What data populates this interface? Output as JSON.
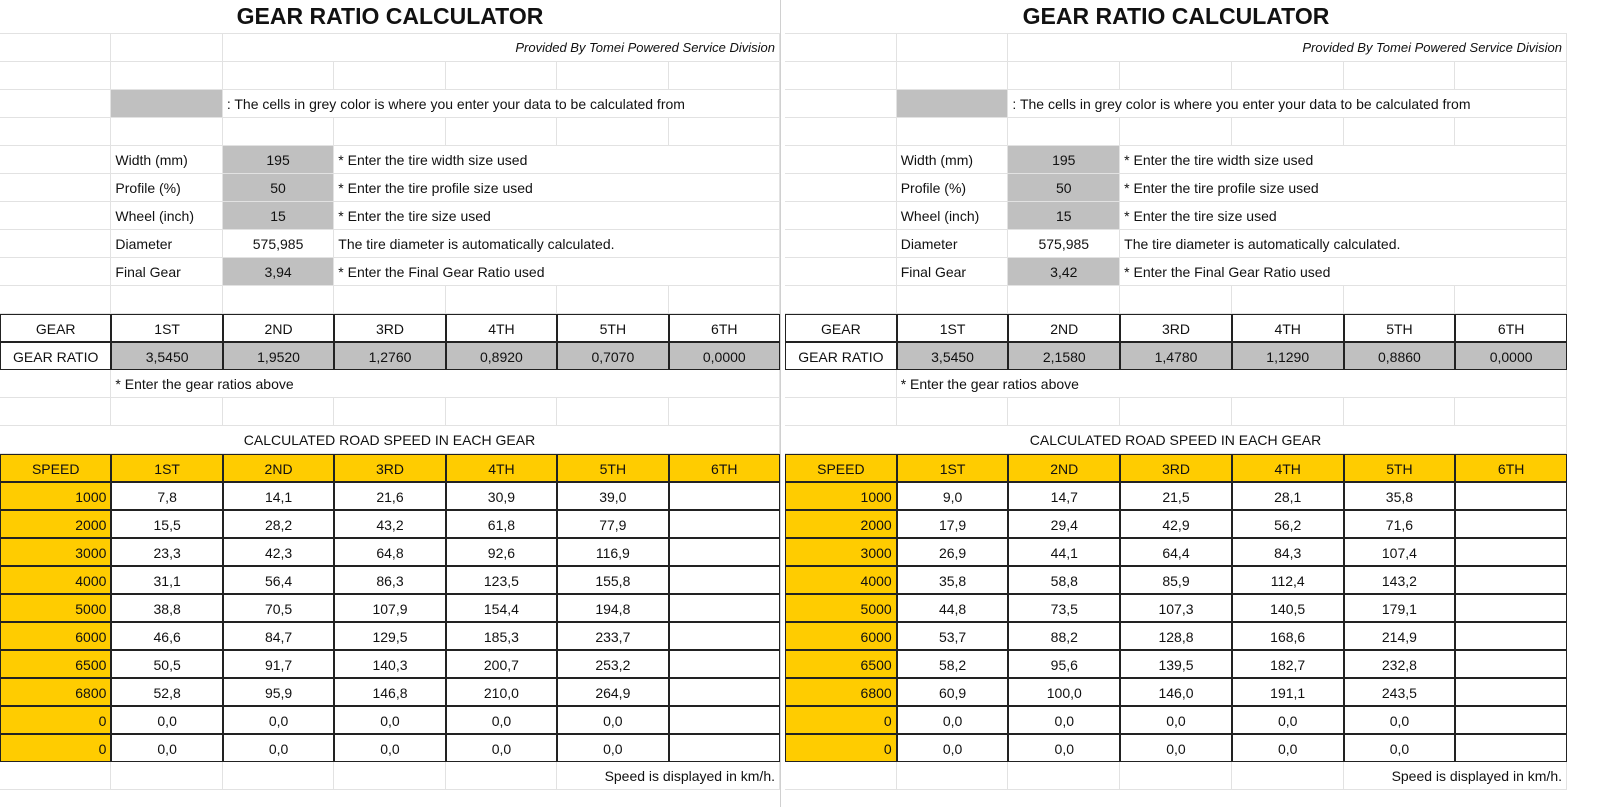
{
  "panels": [
    {
      "title": "GEAR RATIO CALCULATOR",
      "provider": "Provided By Tomei Powered Service Division",
      "legend": ": The cells in grey color is where you enter your data to be calculated from",
      "inputs": [
        {
          "label": "Width (mm)",
          "value": "195",
          "note": "* Enter the tire width size used",
          "editable": true
        },
        {
          "label": "Profile (%)",
          "value": "50",
          "note": "* Enter the tire profile size used",
          "editable": true
        },
        {
          "label": "Wheel (inch)",
          "value": "15",
          "note": "* Enter the tire size used",
          "editable": true
        },
        {
          "label": "Diameter",
          "value": "575,985",
          "note": "The tire diameter is automatically calculated.",
          "editable": false
        },
        {
          "label": "Final Gear",
          "value": "3,94",
          "note": "* Enter the Final Gear Ratio used",
          "editable": true
        }
      ],
      "gear_header": [
        "GEAR",
        "1ST",
        "2ND",
        "3RD",
        "4TH",
        "5TH",
        "6TH"
      ],
      "ratio_label": "GEAR RATIO",
      "ratios": [
        "3,5450",
        "1,9520",
        "1,2760",
        "0,8920",
        "0,7070",
        "0,0000"
      ],
      "ratio_note": "* Enter the gear ratios above",
      "speed_title": "CALCULATED ROAD SPEED IN EACH GEAR",
      "speed_header": [
        "SPEED",
        "1ST",
        "2ND",
        "3RD",
        "4TH",
        "5TH",
        "6TH"
      ],
      "speed_rows": [
        [
          "1000",
          "7,8",
          "14,1",
          "21,6",
          "30,9",
          "39,0",
          ""
        ],
        [
          "2000",
          "15,5",
          "28,2",
          "43,2",
          "61,8",
          "77,9",
          ""
        ],
        [
          "3000",
          "23,3",
          "42,3",
          "64,8",
          "92,6",
          "116,9",
          ""
        ],
        [
          "4000",
          "31,1",
          "56,4",
          "86,3",
          "123,5",
          "155,8",
          ""
        ],
        [
          "5000",
          "38,8",
          "70,5",
          "107,9",
          "154,4",
          "194,8",
          ""
        ],
        [
          "6000",
          "46,6",
          "84,7",
          "129,5",
          "185,3",
          "233,7",
          ""
        ],
        [
          "6500",
          "50,5",
          "91,7",
          "140,3",
          "200,7",
          "253,2",
          ""
        ],
        [
          "6800",
          "52,8",
          "95,9",
          "146,8",
          "210,0",
          "264,9",
          ""
        ],
        [
          "0",
          "0,0",
          "0,0",
          "0,0",
          "0,0",
          "0,0",
          ""
        ],
        [
          "0",
          "0,0",
          "0,0",
          "0,0",
          "0,0",
          "0,0",
          ""
        ]
      ],
      "unit_note": "Speed is displayed in km/h."
    },
    {
      "title": "GEAR RATIO CALCULATOR",
      "provider": "Provided By Tomei Powered Service Division",
      "legend": ": The cells in grey color is where you enter your data to be calculated from",
      "inputs": [
        {
          "label": "Width (mm)",
          "value": "195",
          "note": "* Enter the tire width size used",
          "editable": true
        },
        {
          "label": "Profile (%)",
          "value": "50",
          "note": "* Enter the tire profile size used",
          "editable": true
        },
        {
          "label": "Wheel (inch)",
          "value": "15",
          "note": "* Enter the tire size used",
          "editable": true
        },
        {
          "label": "Diameter",
          "value": "575,985",
          "note": "The tire diameter is automatically calculated.",
          "editable": false
        },
        {
          "label": "Final Gear",
          "value": "3,42",
          "note": "* Enter the Final Gear Ratio used",
          "editable": true
        }
      ],
      "gear_header": [
        "GEAR",
        "1ST",
        "2ND",
        "3RD",
        "4TH",
        "5TH",
        "6TH"
      ],
      "ratio_label": "GEAR RATIO",
      "ratios": [
        "3,5450",
        "2,1580",
        "1,4780",
        "1,1290",
        "0,8860",
        "0,0000"
      ],
      "ratio_note": "* Enter the gear ratios above",
      "speed_title": "CALCULATED ROAD SPEED IN EACH GEAR",
      "speed_header": [
        "SPEED",
        "1ST",
        "2ND",
        "3RD",
        "4TH",
        "5TH",
        "6TH"
      ],
      "speed_rows": [
        [
          "1000",
          "9,0",
          "14,7",
          "21,5",
          "28,1",
          "35,8",
          ""
        ],
        [
          "2000",
          "17,9",
          "29,4",
          "42,9",
          "56,2",
          "71,6",
          ""
        ],
        [
          "3000",
          "26,9",
          "44,1",
          "64,4",
          "84,3",
          "107,4",
          ""
        ],
        [
          "4000",
          "35,8",
          "58,8",
          "85,9",
          "112,4",
          "143,2",
          ""
        ],
        [
          "5000",
          "44,8",
          "73,5",
          "107,3",
          "140,5",
          "179,1",
          ""
        ],
        [
          "6000",
          "53,7",
          "88,2",
          "128,8",
          "168,6",
          "214,9",
          ""
        ],
        [
          "6500",
          "58,2",
          "95,6",
          "139,5",
          "182,7",
          "232,8",
          ""
        ],
        [
          "6800",
          "60,9",
          "100,0",
          "146,0",
          "191,1",
          "243,5",
          ""
        ],
        [
          "0",
          "0,0",
          "0,0",
          "0,0",
          "0,0",
          "0,0",
          ""
        ],
        [
          "0",
          "0,0",
          "0,0",
          "0,0",
          "0,0",
          "0,0",
          ""
        ]
      ],
      "unit_note": "Speed is displayed in km/h."
    }
  ],
  "colors": {
    "input_grey": "#c0c0c0",
    "header_yellow": "#ffcc00"
  }
}
